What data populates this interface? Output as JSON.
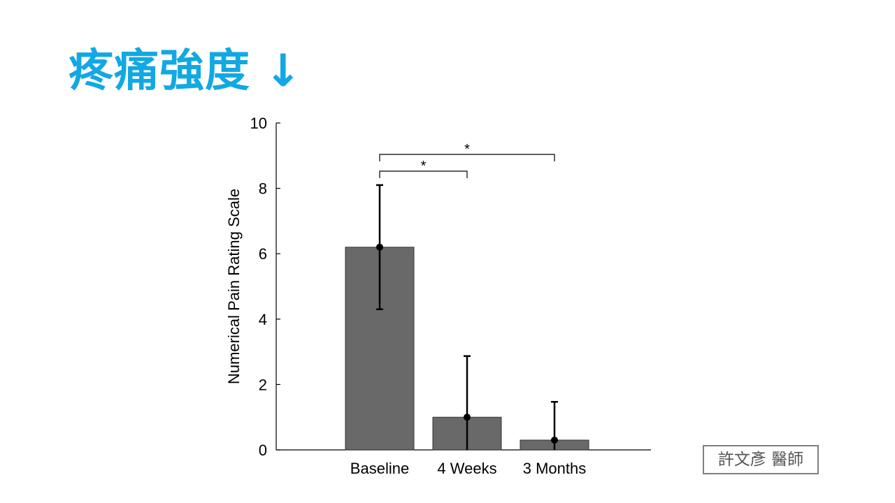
{
  "slide": {
    "title": "疼痛強度",
    "title_arrow": "↓",
    "title_color": "#12a8e3",
    "author_stamp": "許文彥 醫師"
  },
  "chart_data": {
    "type": "bar",
    "categories": [
      "Baseline",
      "4 Weeks",
      "3 Months"
    ],
    "values": [
      6.2,
      1.0,
      0.3
    ],
    "error_low": [
      4.3,
      0.0,
      0.0
    ],
    "error_high": [
      8.1,
      2.87,
      1.47
    ],
    "ylabel": "Numerical Pain Rating Scale",
    "xlabel": "",
    "ylim": [
      0,
      10
    ],
    "yticks": [
      0,
      2,
      4,
      6,
      8,
      10
    ],
    "grid": false,
    "bar_color": "#696969",
    "significance": [
      {
        "from": "Baseline",
        "to": "4 Weeks",
        "label": "*"
      },
      {
        "from": "Baseline",
        "to": "3 Months",
        "label": "*"
      }
    ]
  }
}
